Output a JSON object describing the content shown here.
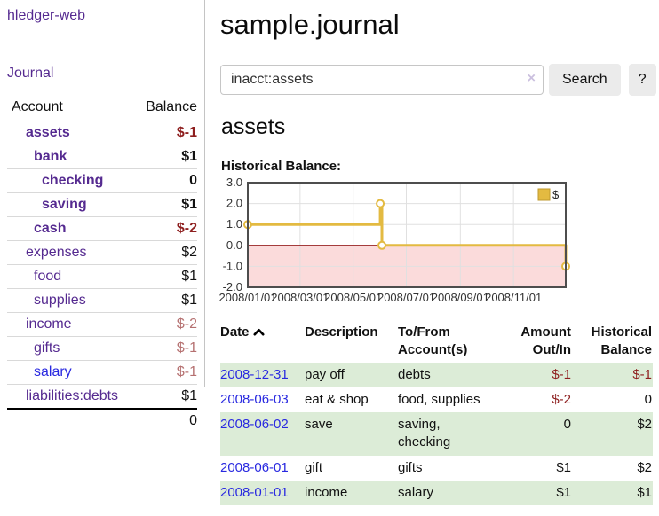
{
  "app": {
    "brand": "hledger-web",
    "journal_link": "Journal"
  },
  "colors": {
    "link_purple": "#552a90",
    "link_blue": "#2929e0",
    "negative_strong": "#8e1f1f",
    "negative_muted": "#b57070",
    "row_green": "#dcecd7",
    "button_gray": "#ebebeb"
  },
  "sidebar": {
    "header": {
      "account": "Account",
      "balance": "Balance"
    },
    "accounts": [
      {
        "name": "assets",
        "indent": 0,
        "balance": "$-1",
        "bold": true,
        "neg": "strong"
      },
      {
        "name": "bank",
        "indent": 1,
        "balance": "$1",
        "bold": true
      },
      {
        "name": "checking",
        "indent": 2,
        "balance": "0",
        "bold": true
      },
      {
        "name": "saving",
        "indent": 2,
        "balance": "$1",
        "bold": true
      },
      {
        "name": "cash",
        "indent": 1,
        "balance": "$-2",
        "bold": true,
        "neg": "strong"
      },
      {
        "name": "expenses",
        "indent": 0,
        "balance": "$2"
      },
      {
        "name": "food",
        "indent": 1,
        "balance": "$1"
      },
      {
        "name": "supplies",
        "indent": 1,
        "balance": "$1"
      },
      {
        "name": "income",
        "indent": 0,
        "balance": "$-2",
        "neg": "muted"
      },
      {
        "name": "gifts",
        "indent": 1,
        "balance": "$-1",
        "neg": "muted"
      },
      {
        "name": "salary",
        "indent": 1,
        "balance": "$-1",
        "neg": "muted",
        "link": "blue"
      },
      {
        "name": "liabilities:debts",
        "indent": 0,
        "balance": "$1"
      }
    ],
    "total": "0"
  },
  "main": {
    "title": "sample.journal"
  },
  "search": {
    "value": "inacct:assets",
    "clear_icon": "×",
    "search_button": "Search",
    "help_button": "?"
  },
  "account_view": {
    "heading": "assets",
    "chart_title": "Historical Balance:"
  },
  "chart_data": {
    "type": "line",
    "step": true,
    "title": "Historical Balance",
    "series": [
      {
        "name": "$",
        "color": "#e3ba41",
        "points": [
          [
            "2008-01-01",
            1
          ],
          [
            "2008-06-01",
            2
          ],
          [
            "2008-06-03",
            0
          ],
          [
            "2008-12-31",
            -1
          ]
        ]
      }
    ],
    "xlim": [
      "2008-01-01",
      "2008-12-31"
    ],
    "ylim": [
      -2.0,
      3.0
    ],
    "y_ticks": [
      3.0,
      2.0,
      1.0,
      0.0,
      -1.0,
      -2.0
    ],
    "x_ticks": [
      "2008/01/01",
      "2008/03/01",
      "2008/05/01",
      "2008/07/01",
      "2008/09/01",
      "2008/11/01"
    ],
    "grid": true,
    "legend": {
      "label": "$",
      "position": "top-right"
    },
    "negative_region_color": "#fbdbdb",
    "zero_line_color": "#8b0000"
  },
  "register": {
    "columns": [
      "Date",
      "Description",
      "To/From Account(s)",
      "Amount Out/In",
      "Historical Balance"
    ],
    "rows": [
      {
        "date": "2008-12-31",
        "description": "pay off",
        "accounts": "debts",
        "amount": "$-1",
        "balance": "$-1"
      },
      {
        "date": "2008-06-03",
        "description": "eat & shop",
        "accounts": "food, supplies",
        "amount": "$-2",
        "balance": "0"
      },
      {
        "date": "2008-06-02",
        "description": "save",
        "accounts": "saving,\nchecking",
        "amount": "0",
        "balance": "$2"
      },
      {
        "date": "2008-06-01",
        "description": "gift",
        "accounts": "gifts",
        "amount": "$1",
        "balance": "$2"
      },
      {
        "date": "2008-01-01",
        "description": "income",
        "accounts": "salary",
        "amount": "$1",
        "balance": "$1"
      }
    ]
  }
}
